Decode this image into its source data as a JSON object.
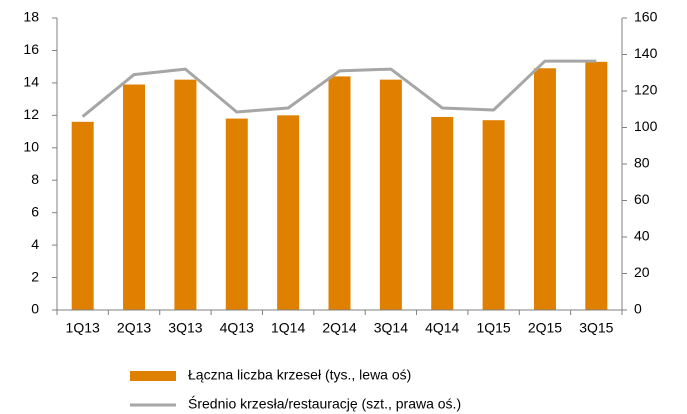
{
  "chart_data": {
    "type": "bar",
    "categories": [
      "1Q13",
      "2Q13",
      "3Q13",
      "4Q13",
      "1Q14",
      "2Q14",
      "3Q14",
      "4Q14",
      "1Q15",
      "2Q15",
      "3Q15"
    ],
    "series": [
      {
        "name": "Łączna liczba krzeseł (tys., lewa oś)",
        "type": "bar",
        "color": "#e08000",
        "values": [
          11.6,
          13.9,
          14.2,
          11.8,
          12.0,
          14.4,
          14.2,
          11.9,
          11.7,
          14.9,
          15.3
        ]
      },
      {
        "name": "Średnio krzesła/restaurację (szt., prawa oś.)",
        "type": "line",
        "axis": "y2",
        "color": "#a6a6a6",
        "values": [
          106,
          129,
          132,
          108.5,
          110.7,
          131,
          132,
          110.7,
          109.6,
          136.4,
          136.4
        ]
      }
    ],
    "ylim": [
      0,
      18
    ],
    "yticks": [
      0,
      2,
      4,
      6,
      8,
      10,
      12,
      14,
      16,
      18
    ],
    "y2lim": [
      0,
      160
    ],
    "y2ticks": [
      0,
      20,
      40,
      60,
      80,
      100,
      120,
      140,
      160
    ]
  }
}
